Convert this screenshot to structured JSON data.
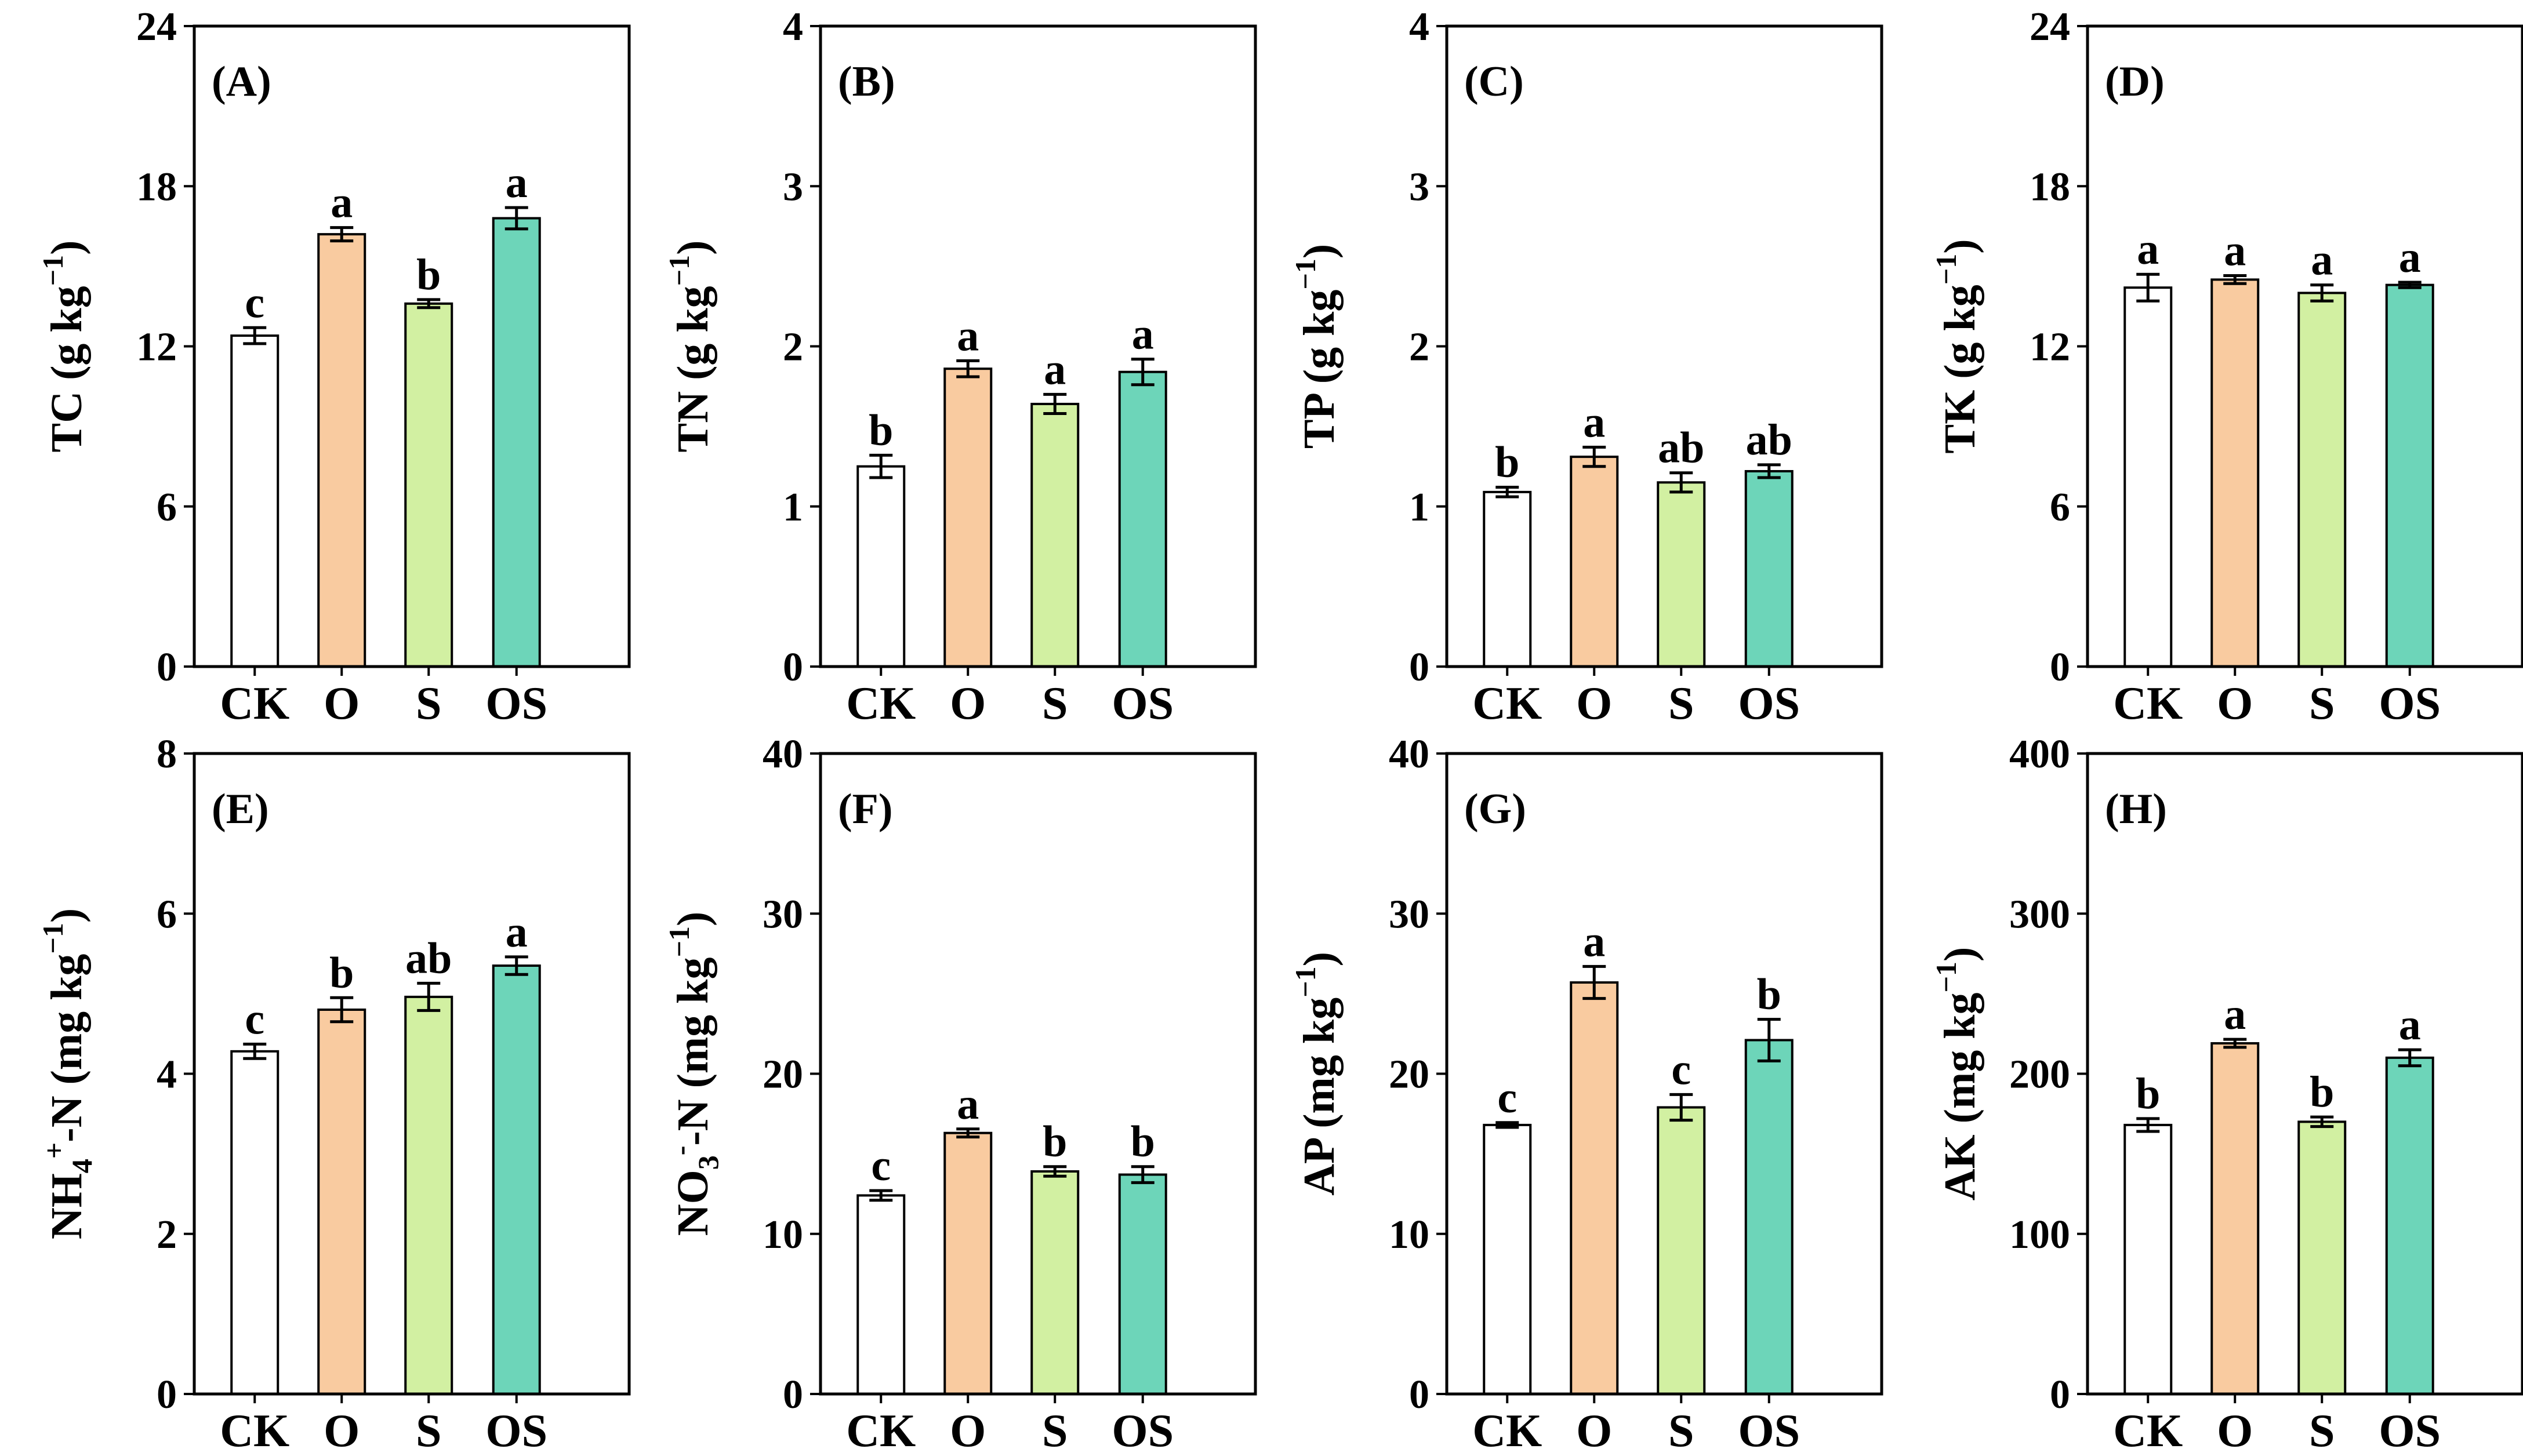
{
  "colors": {
    "CK": "#ffffff",
    "O": "#f9cba0",
    "S": "#d2f0a2",
    "OS": "#6dd5b9",
    "axis": "#000000"
  },
  "chart_data": [
    {
      "type": "bar",
      "panel": "(A)",
      "ylabel_main": "TC (g kg",
      "ylabel_sup": "−1",
      "ylabel_tail": ")",
      "categories": [
        "CK",
        "O",
        "S",
        "OS"
      ],
      "values": [
        12.4,
        16.2,
        13.6,
        16.8
      ],
      "errors": [
        0.3,
        0.25,
        0.15,
        0.4
      ],
      "letters": [
        "c",
        "a",
        "b",
        "a"
      ],
      "ylim": [
        0,
        24
      ],
      "yticks": [
        0,
        6,
        12,
        18,
        24
      ]
    },
    {
      "type": "bar",
      "panel": "(B)",
      "ylabel_main": "TN (g kg",
      "ylabel_sup": "−1",
      "ylabel_tail": ")",
      "categories": [
        "CK",
        "O",
        "S",
        "OS"
      ],
      "values": [
        1.25,
        1.86,
        1.64,
        1.84
      ],
      "errors": [
        0.07,
        0.05,
        0.06,
        0.08
      ],
      "letters": [
        "b",
        "a",
        "a",
        "a"
      ],
      "ylim": [
        0,
        4
      ],
      "yticks": [
        0,
        1,
        2,
        3,
        4
      ]
    },
    {
      "type": "bar",
      "panel": "(C)",
      "ylabel_main": "TP (g kg",
      "ylabel_sup": "−1",
      "ylabel_tail": ")",
      "categories": [
        "CK",
        "O",
        "S",
        "OS"
      ],
      "values": [
        1.09,
        1.31,
        1.15,
        1.22
      ],
      "errors": [
        0.03,
        0.06,
        0.06,
        0.04
      ],
      "letters": [
        "b",
        "a",
        "ab",
        "ab"
      ],
      "ylim": [
        0,
        4
      ],
      "yticks": [
        0,
        1,
        2,
        3,
        4
      ]
    },
    {
      "type": "bar",
      "panel": "(D)",
      "ylabel_main": "TK (g kg",
      "ylabel_sup": "−1",
      "ylabel_tail": ")",
      "categories": [
        "CK",
        "O",
        "S",
        "OS"
      ],
      "values": [
        14.2,
        14.5,
        14.0,
        14.3
      ],
      "errors": [
        0.5,
        0.15,
        0.3,
        0.1
      ],
      "letters": [
        "a",
        "a",
        "a",
        "a"
      ],
      "ylim": [
        0,
        24
      ],
      "yticks": [
        0,
        6,
        12,
        18,
        24
      ]
    },
    {
      "type": "bar",
      "panel": "(E)",
      "ylabel_pre": "NH",
      "ylabel_sub": "4",
      "ylabel_sup": "+",
      "ylabel_main": "-N (mg kg",
      "ylabel_sup2": "−1",
      "ylabel_tail": ")",
      "categories": [
        "CK",
        "O",
        "S",
        "OS"
      ],
      "values": [
        4.28,
        4.8,
        4.96,
        5.35
      ],
      "errors": [
        0.09,
        0.15,
        0.17,
        0.11
      ],
      "letters": [
        "c",
        "b",
        "ab",
        "a"
      ],
      "ylim": [
        0,
        8
      ],
      "yticks": [
        0,
        2,
        4,
        6,
        8
      ]
    },
    {
      "type": "bar",
      "panel": "(F)",
      "ylabel_pre": "NO",
      "ylabel_sub": "3",
      "ylabel_sup": "-",
      "ylabel_main": "-N (mg kg",
      "ylabel_sup2": "−1",
      "ylabel_tail": ")",
      "categories": [
        "CK",
        "O",
        "S",
        "OS"
      ],
      "values": [
        12.4,
        16.3,
        13.9,
        13.7
      ],
      "errors": [
        0.3,
        0.25,
        0.3,
        0.5
      ],
      "letters": [
        "c",
        "a",
        "b",
        "b"
      ],
      "ylim": [
        0,
        40
      ],
      "yticks": [
        0,
        10,
        20,
        30,
        40
      ]
    },
    {
      "type": "bar",
      "panel": "(G)",
      "ylabel_main": "AP (mg kg",
      "ylabel_sup": "−1",
      "ylabel_tail": ")",
      "categories": [
        "CK",
        "O",
        "S",
        "OS"
      ],
      "values": [
        16.8,
        25.7,
        17.9,
        22.1
      ],
      "errors": [
        0.15,
        1.0,
        0.8,
        1.3
      ],
      "letters": [
        "c",
        "a",
        "c",
        "b"
      ],
      "ylim": [
        0,
        40
      ],
      "yticks": [
        0,
        10,
        20,
        30,
        40
      ]
    },
    {
      "type": "bar",
      "panel": "(H)",
      "ylabel_main": "AK (mg kg",
      "ylabel_sup": "−1",
      "ylabel_tail": ")",
      "categories": [
        "CK",
        "O",
        "S",
        "OS"
      ],
      "values": [
        168,
        219,
        170,
        210
      ],
      "errors": [
        4,
        2.5,
        3,
        5
      ],
      "letters": [
        "b",
        "a",
        "b",
        "a"
      ],
      "ylim": [
        0,
        400
      ],
      "yticks": [
        0,
        100,
        200,
        300,
        400
      ]
    }
  ]
}
